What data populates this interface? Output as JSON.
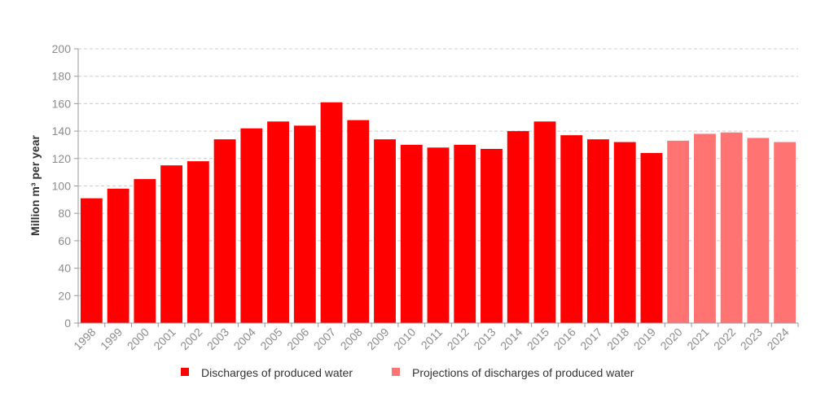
{
  "chart_data": {
    "type": "bar",
    "categories": [
      "1998",
      "1999",
      "2000",
      "2001",
      "2002",
      "2003",
      "2004",
      "2005",
      "2006",
      "2007",
      "2008",
      "2009",
      "2010",
      "2011",
      "2012",
      "2013",
      "2014",
      "2015",
      "2016",
      "2017",
      "2018",
      "2019",
      "2020",
      "2021",
      "2022",
      "2023",
      "2024"
    ],
    "series": [
      {
        "name": "Discharges of produced water",
        "color": "#ff0000",
        "values": [
          91,
          98,
          105,
          115,
          118,
          134,
          142,
          147,
          144,
          161,
          148,
          134,
          130,
          128,
          130,
          127,
          140,
          147,
          137,
          134,
          132,
          124,
          null,
          null,
          null,
          null,
          null
        ]
      },
      {
        "name": "Projections of discharges of produced water",
        "color": "#ff7373",
        "values": [
          null,
          null,
          null,
          null,
          null,
          null,
          null,
          null,
          null,
          null,
          null,
          null,
          null,
          null,
          null,
          null,
          null,
          null,
          null,
          null,
          null,
          null,
          133,
          138,
          139,
          135,
          132
        ]
      }
    ],
    "ylabel": "Million m³ per year",
    "xlabel": "",
    "ylim": [
      0,
      200
    ],
    "yticks": [
      0,
      20,
      40,
      60,
      80,
      100,
      120,
      140,
      160,
      180,
      200
    ],
    "grid": "horizontal dashed",
    "legend_position": "bottom"
  }
}
